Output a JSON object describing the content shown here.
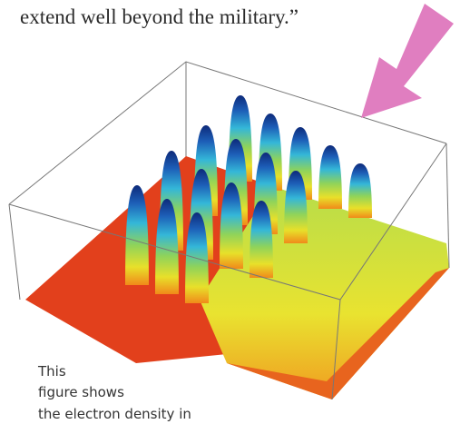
{
  "quote": "extend well beyond the military.”",
  "caption": {
    "lines": [
      "This",
      "figure shows",
      "the electron density in"
    ]
  }
}
